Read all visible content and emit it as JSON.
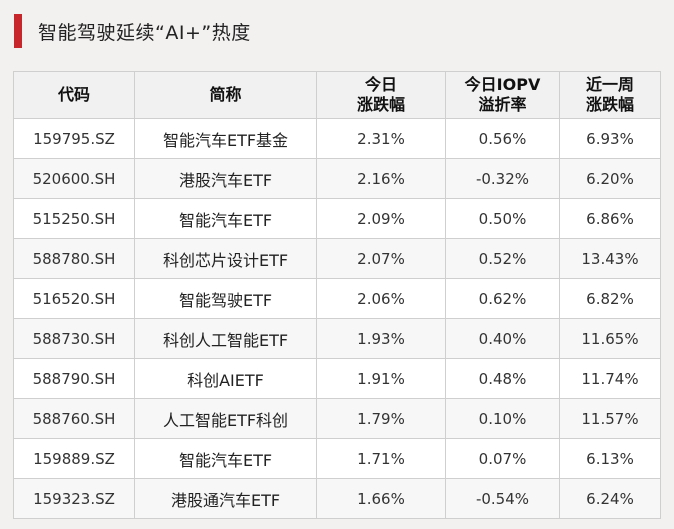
{
  "title": "智能驾驶延续“AI+”热度",
  "colors": {
    "accent": "#c7272b",
    "background": "#f3f1f0",
    "table_border": "#cfcfcf"
  },
  "table": {
    "headers": [
      {
        "line1": "代码",
        "line2": ""
      },
      {
        "line1": "简称",
        "line2": ""
      },
      {
        "line1": "今日",
        "line2": "涨跌幅"
      },
      {
        "line1": "今日IOPV",
        "line2": "溢折率"
      },
      {
        "line1": "近一周",
        "line2": "涨跌幅"
      }
    ],
    "rows": [
      {
        "code": "159795.SZ",
        "name": "智能汽车ETF基金",
        "change": "2.31%",
        "iopv": "0.56%",
        "week": "6.93%"
      },
      {
        "code": "520600.SH",
        "name": "港股汽车ETF",
        "change": "2.16%",
        "iopv": "-0.32%",
        "week": "6.20%"
      },
      {
        "code": "515250.SH",
        "name": "智能汽车ETF",
        "change": "2.09%",
        "iopv": "0.50%",
        "week": "6.86%"
      },
      {
        "code": "588780.SH",
        "name": "科创芯片设计ETF",
        "change": "2.07%",
        "iopv": "0.52%",
        "week": "13.43%"
      },
      {
        "code": "516520.SH",
        "name": "智能驾驶ETF",
        "change": "2.06%",
        "iopv": "0.62%",
        "week": "6.82%"
      },
      {
        "code": "588730.SH",
        "name": "科创人工智能ETF",
        "change": "1.93%",
        "iopv": "0.40%",
        "week": "11.65%"
      },
      {
        "code": "588790.SH",
        "name": "科创AIETF",
        "change": "1.91%",
        "iopv": "0.48%",
        "week": "11.74%"
      },
      {
        "code": "588760.SH",
        "name": "人工智能ETF科创",
        "change": "1.79%",
        "iopv": "0.10%",
        "week": "11.57%"
      },
      {
        "code": "159889.SZ",
        "name": "智能汽车ETF",
        "change": "1.71%",
        "iopv": "0.07%",
        "week": "6.13%"
      },
      {
        "code": "159323.SZ",
        "name": "港股通汽车ETF",
        "change": "1.66%",
        "iopv": "-0.54%",
        "week": "6.24%"
      }
    ]
  }
}
